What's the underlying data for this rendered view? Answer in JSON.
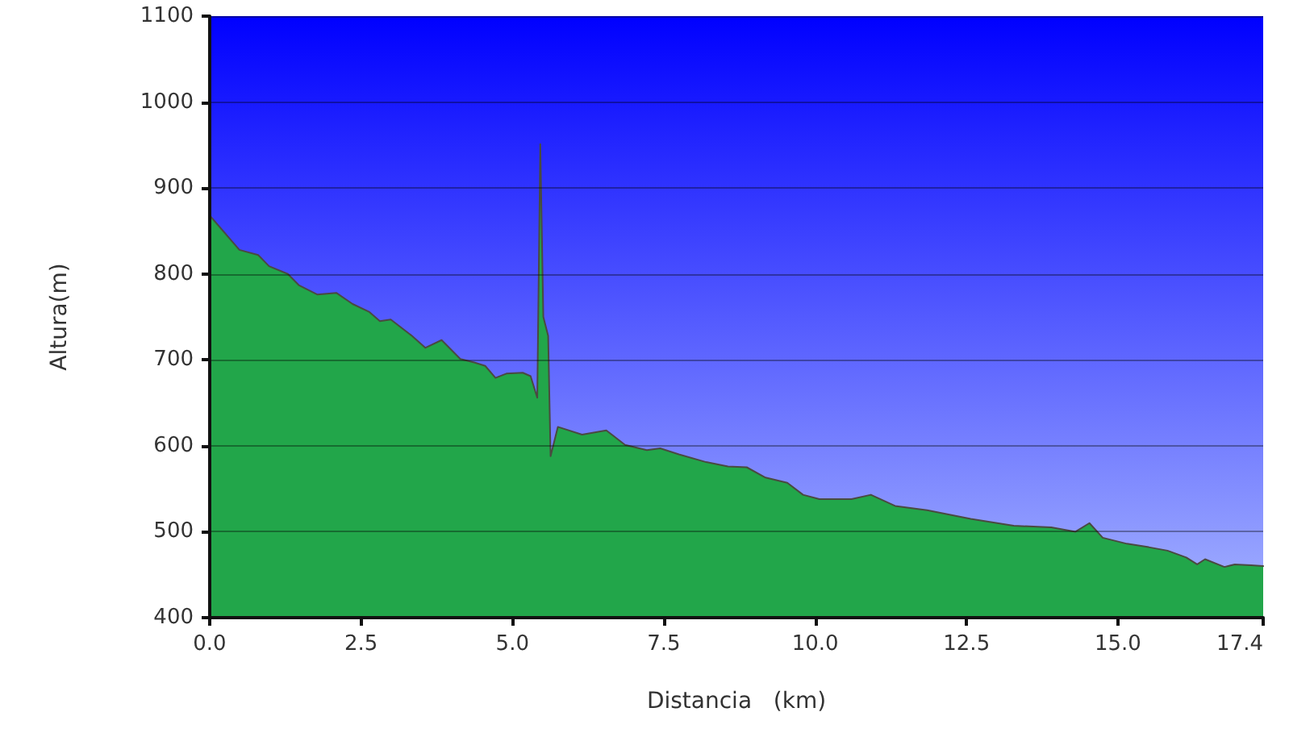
{
  "chart_data": {
    "type": "area",
    "xlabel": "Distancia   (km)",
    "ylabel": "Altura(m)",
    "x": [
      0,
      0.49,
      0.8,
      0.98,
      1.29,
      1.47,
      1.78,
      2.09,
      2.36,
      2.63,
      2.81,
      2.99,
      3.34,
      3.56,
      3.83,
      4.14,
      4.37,
      4.55,
      4.72,
      4.9,
      5.17,
      5.3,
      5.41,
      5.46,
      5.51,
      5.59,
      5.63,
      5.75,
      6.15,
      6.55,
      6.86,
      7.22,
      7.44,
      7.75,
      8.2,
      8.56,
      8.87,
      9.18,
      9.54,
      9.8,
      10.07,
      10.6,
      10.92,
      11.32,
      11.85,
      12.57,
      13.28,
      13.9,
      14.3,
      14.53,
      14.75,
      15.15,
      15.51,
      15.82,
      16.13,
      16.31,
      16.44,
      16.76,
      16.93,
      17.2,
      17.4
    ],
    "series": [
      {
        "color": "#22a64a",
        "values": [
          868,
          828,
          822,
          809,
          800,
          787,
          776,
          778,
          765,
          756,
          745,
          747,
          728,
          714,
          723,
          701,
          697,
          693,
          679,
          684,
          685,
          681,
          656,
          951,
          750,
          728,
          588,
          622,
          613,
          618,
          601,
          595,
          597,
          590,
          581,
          576,
          575,
          563,
          557,
          543,
          538,
          538,
          543,
          530,
          525,
          515,
          507,
          505,
          500,
          510,
          493,
          486,
          482,
          478,
          470,
          462,
          468,
          459,
          462,
          461,
          460
        ]
      }
    ],
    "xlim": [
      0,
      17.4
    ],
    "xticks": [
      {
        "value": 0,
        "label": "0.0"
      },
      {
        "value": 2.5,
        "label": "2.5"
      },
      {
        "value": 5,
        "label": "5.0"
      },
      {
        "value": 7.5,
        "label": "7.5"
      },
      {
        "value": 10,
        "label": "10.0"
      },
      {
        "value": 12.5,
        "label": "12.5"
      },
      {
        "value": 15,
        "label": "15.0"
      },
      {
        "value": 17.4,
        "label": "17.4"
      }
    ],
    "ylim": [
      400,
      1100
    ],
    "yticks": [
      400,
      500,
      600,
      700,
      800,
      900,
      1000,
      1100
    ],
    "grid": "y"
  }
}
